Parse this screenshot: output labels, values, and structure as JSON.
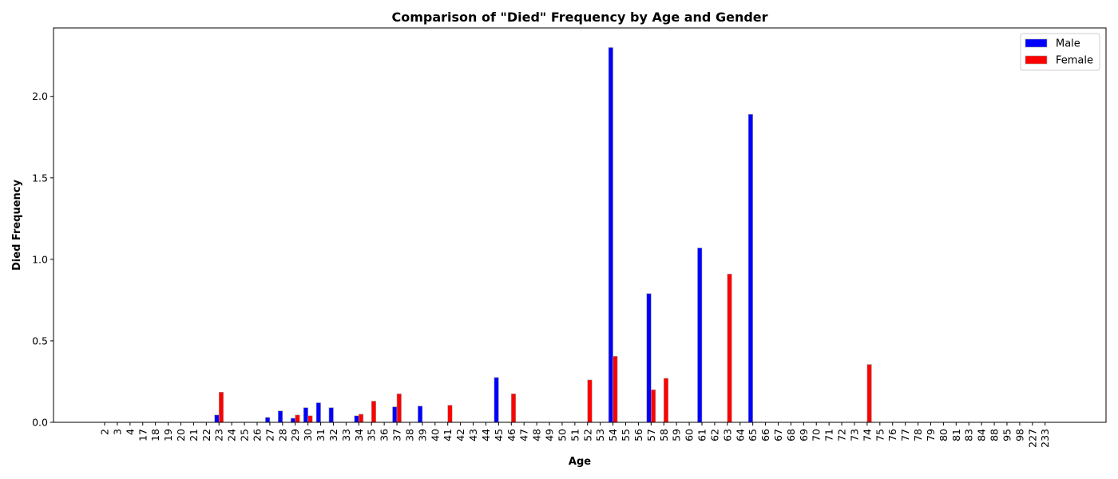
{
  "chart_data": {
    "type": "bar",
    "title": "Comparison of \"Died\" Frequency by Age and Gender",
    "xlabel": "Age",
    "ylabel": "Died Frequency",
    "ylim": [
      0,
      2.42
    ],
    "yticks": [
      0.0,
      0.5,
      1.0,
      1.5,
      2.0
    ],
    "ytick_labels": [
      "0.0",
      "0.5",
      "1.0",
      "1.5",
      "2.0"
    ],
    "grid": false,
    "legend_position": "top-right",
    "categories": [
      "2",
      "3",
      "4",
      "17",
      "18",
      "19",
      "20",
      "21",
      "22",
      "23",
      "24",
      "25",
      "26",
      "27",
      "28",
      "29",
      "30",
      "31",
      "32",
      "33",
      "34",
      "35",
      "36",
      "37",
      "38",
      "39",
      "40",
      "41",
      "42",
      "43",
      "44",
      "45",
      "46",
      "47",
      "48",
      "49",
      "50",
      "51",
      "52",
      "53",
      "54",
      "55",
      "56",
      "57",
      "58",
      "59",
      "60",
      "61",
      "62",
      "63",
      "64",
      "65",
      "66",
      "67",
      "68",
      "69",
      "70",
      "71",
      "72",
      "73",
      "74",
      "75",
      "76",
      "77",
      "78",
      "79",
      "80",
      "81",
      "83",
      "84",
      "88",
      "95",
      "98",
      "227",
      "233"
    ],
    "series": [
      {
        "name": "Male",
        "color": "#0000ff",
        "values": [
          0,
          0,
          0,
          0,
          0,
          0,
          0,
          0,
          0,
          0.045,
          0,
          0,
          0,
          0.03,
          0.07,
          0.025,
          0.09,
          0.12,
          0.09,
          0,
          0.04,
          0,
          0,
          0.095,
          0,
          0.1,
          0,
          0,
          0,
          0,
          0,
          0.275,
          0,
          0,
          0,
          0,
          0,
          0,
          0,
          0,
          2.3,
          0,
          0,
          0.79,
          0,
          0,
          0,
          1.07,
          0,
          0,
          0,
          1.89,
          0,
          0,
          0,
          0,
          0,
          0,
          0,
          0,
          0,
          0,
          0,
          0,
          0,
          0,
          0,
          0,
          0,
          0,
          0,
          0,
          0,
          0,
          0
        ]
      },
      {
        "name": "Female",
        "color": "#ff0000",
        "values": [
          0,
          0,
          0,
          0,
          0,
          0,
          0,
          0,
          0,
          0.185,
          0,
          0,
          0,
          0,
          0,
          0.045,
          0.04,
          0,
          0,
          0,
          0.05,
          0.13,
          0,
          0.175,
          0,
          0,
          0,
          0.105,
          0,
          0,
          0,
          0,
          0.175,
          0,
          0,
          0,
          0,
          0,
          0.26,
          0,
          0.405,
          0,
          0,
          0.2,
          0.27,
          0,
          0,
          0,
          0,
          0.91,
          0,
          0,
          0,
          0,
          0,
          0,
          0,
          0,
          0,
          0,
          0.355,
          0,
          0,
          0,
          0,
          0,
          0,
          0,
          0,
          0,
          0,
          0,
          0,
          0,
          0
        ]
      }
    ]
  }
}
